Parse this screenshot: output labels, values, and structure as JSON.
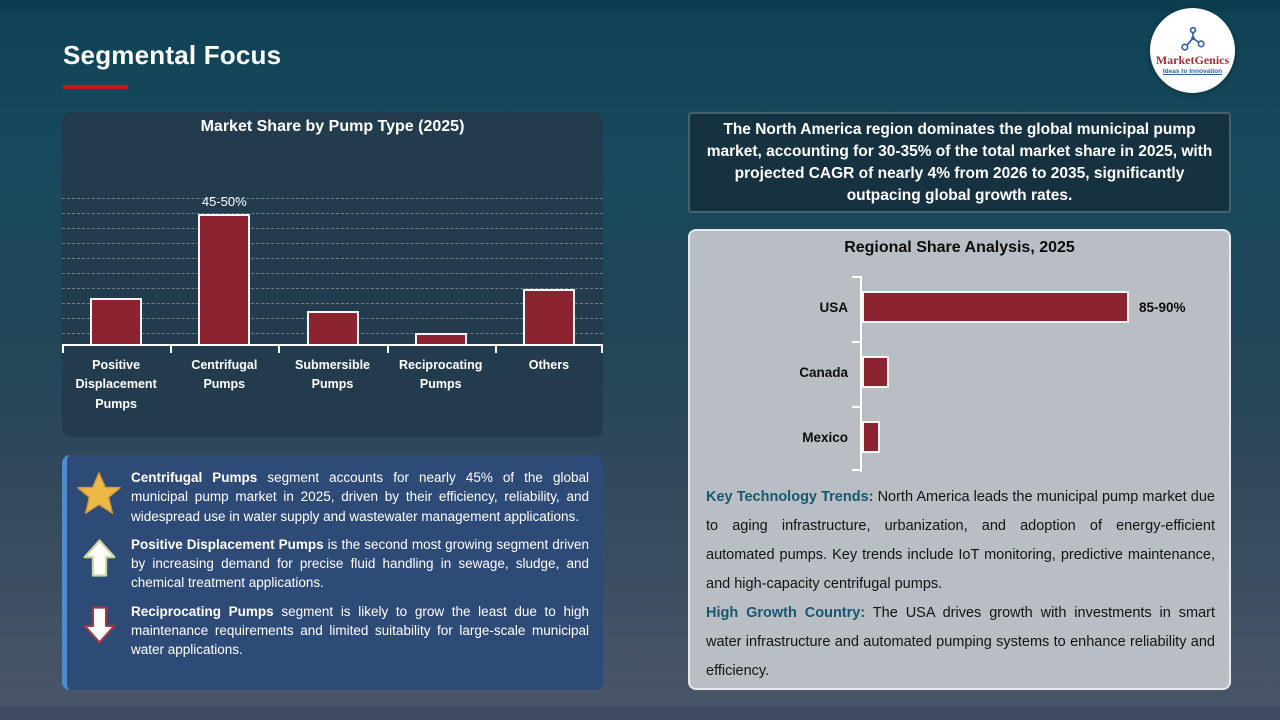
{
  "slide": {
    "title": "Segmental Focus"
  },
  "logo": {
    "brand": "MarketGenics",
    "tagline": "Ideas to Innovation"
  },
  "highlight": {
    "text": "The North America region dominates the global municipal pump market, accounting for 30-35% of the total market share in 2025, with projected CAGR of nearly 4% from 2026 to 2035, significantly outpacing global growth rates."
  },
  "insights": [
    {
      "icon": "star",
      "lead": "Centrifugal Pumps",
      "text": " segment accounts for nearly 45% of the global municipal pump market in 2025, driven by their efficiency, reliability, and widespread use in water supply and wastewater management applications."
    },
    {
      "icon": "up-arrow",
      "lead": "Positive Displacement Pumps",
      "text": " is the second most growing segment driven by increasing demand for precise fluid handling in sewage, sludge, and chemical treatment applications."
    },
    {
      "icon": "down-arrow",
      "lead": "Reciprocating Pumps",
      "text": " segment is likely to grow the least due to high maintenance requirements and limited suitability for large-scale municipal water applications."
    }
  ],
  "regional": {
    "trends_label": "Key Technology Trends:",
    "trends_text": " North America leads the municipal pump market due to aging infrastructure, urbanization, and adoption of energy-efficient automated pumps. Key trends include IoT monitoring, predictive maintenance, and high-capacity centrifugal pumps.",
    "growth_label": "High Growth Country:",
    "growth_text": " The USA drives growth with investments in smart water infrastructure and automated pumping systems to enhance reliability and efficiency."
  },
  "colors": {
    "bar": "#8b2331",
    "accent_red": "#c7161e",
    "teal_lead": "#17586f",
    "callout_bg": "#2e4a76",
    "panel_dark": "#223c4e",
    "panel_gray": "#b8bec4"
  },
  "chart_data": [
    {
      "type": "bar",
      "title": "Market Share by Pump Type (2025)",
      "categories": [
        "Positive Displacement Pumps",
        "Centrifugal Pumps",
        "Submersible Pumps",
        "Reciprocating Pumps",
        "Others"
      ],
      "values": [
        17,
        47.5,
        12,
        4,
        20
      ],
      "data_labels": [
        "",
        "45-50%",
        "",
        "",
        ""
      ],
      "ylim": [
        0,
        55
      ],
      "grid": "horizontal-dashed",
      "legend": "none",
      "bar_color": "#8b2331"
    },
    {
      "type": "bar-horizontal",
      "title": "Regional Share Analysis, 2025",
      "categories": [
        "USA",
        "Canada",
        "Mexico"
      ],
      "values": [
        87.5,
        9,
        6
      ],
      "data_labels": [
        "85-90%",
        "",
        ""
      ],
      "xlim": [
        0,
        100
      ],
      "grid": "off",
      "legend": "none",
      "bar_color": "#8b2331"
    }
  ]
}
